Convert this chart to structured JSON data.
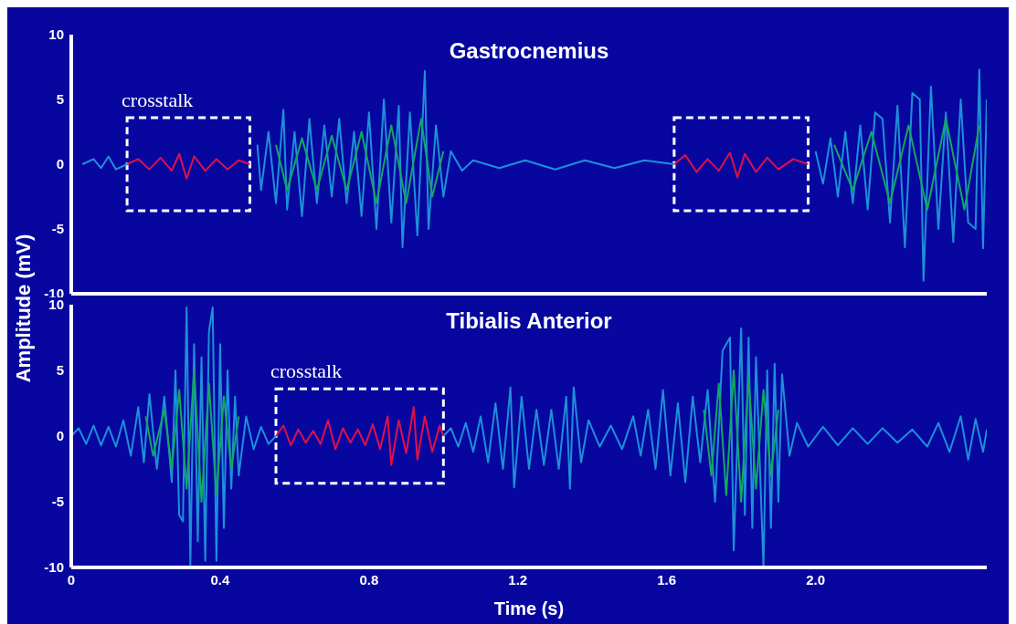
{
  "chart_data": [
    {
      "type": "line",
      "title": "Gastrocnemius",
      "ylabel": "Amplitude (mV)",
      "xlim": [
        0,
        2.46
      ],
      "ylim": [
        -10,
        10
      ],
      "yticks": [
        -10,
        -5,
        0,
        5,
        10
      ],
      "tick_labels": "y",
      "marker": "none",
      "annotations": [
        "crosstalk"
      ],
      "series": [
        {
          "color": "#1e8fd8",
          "x": [
            0.03,
            0.06,
            0.08,
            0.1,
            0.12,
            0.15,
            0.48,
            0.5,
            0.51,
            0.53,
            0.55,
            0.57,
            0.58,
            0.6,
            0.62,
            0.64,
            0.66,
            0.68,
            0.7,
            0.72,
            0.74,
            0.76,
            0.78,
            0.8,
            0.82,
            0.84,
            0.86,
            0.88,
            0.89,
            0.91,
            0.93,
            0.95,
            0.96,
            0.98,
            1.0,
            1.02,
            1.05,
            1.08,
            1.15,
            1.22,
            1.3,
            1.38,
            1.46,
            1.54,
            1.62,
            1.98,
            2.0,
            2.02,
            2.04,
            2.06,
            2.08,
            2.1,
            2.12,
            2.14,
            2.16,
            2.18,
            2.2,
            2.22,
            2.24,
            2.26,
            2.28,
            2.29,
            2.31,
            2.33,
            2.35,
            2.37,
            2.39,
            2.41,
            2.43,
            2.44,
            2.45,
            2.46
          ],
          "values": [
            0,
            0.4,
            -0.3,
            0.6,
            -0.4,
            0,
            null,
            1.5,
            -2,
            2.5,
            -3,
            4.2,
            -3.5,
            2.5,
            -4,
            3.5,
            -3,
            3,
            -2.5,
            3.5,
            -3,
            2.5,
            -4,
            4,
            -5,
            5,
            -4.5,
            4.5,
            -6.4,
            4,
            -5.5,
            7.2,
            -5,
            3,
            -2.5,
            1,
            -0.5,
            0.3,
            -0.3,
            0.3,
            -0.4,
            0.3,
            -0.3,
            0.3,
            0,
            null,
            1,
            -1.5,
            2,
            -2.5,
            2.5,
            -3,
            3,
            -3.5,
            4,
            3.5,
            -4.5,
            4.5,
            -6.4,
            5.5,
            5,
            -9,
            6,
            -5,
            4,
            -6,
            5,
            -4.5,
            -5,
            7.3,
            -6.5,
            5
          ]
        },
        {
          "color": "#12a860",
          "x": [
            0.55,
            0.58,
            0.62,
            0.66,
            0.7,
            0.74,
            0.78,
            0.82,
            0.86,
            0.9,
            0.94,
            0.97,
            1.0,
            1.5,
            2.05,
            2.1,
            2.15,
            2.2,
            2.25,
            2.3,
            2.35,
            2.4,
            2.44
          ],
          "values": [
            1.5,
            -2,
            2,
            -2,
            2.2,
            -2,
            2.5,
            -3,
            3,
            -3,
            3.5,
            -2.5,
            1,
            null,
            1.5,
            -2,
            2.5,
            -3,
            3,
            -3.5,
            3.5,
            -3.5,
            3
          ]
        },
        {
          "color": "#e0104a",
          "x": [
            0.15,
            0.18,
            0.21,
            0.24,
            0.27,
            0.29,
            0.31,
            0.33,
            0.36,
            0.39,
            0.42,
            0.45,
            0.48,
            1.0,
            1.62,
            1.65,
            1.68,
            1.71,
            1.74,
            1.77,
            1.79,
            1.81,
            1.84,
            1.87,
            1.9,
            1.94,
            1.98
          ],
          "values": [
            0,
            0.4,
            -0.4,
            0.5,
            -0.5,
            0.8,
            -1.1,
            0.6,
            -0.5,
            0.4,
            -0.4,
            0.3,
            0,
            null,
            0,
            0.7,
            -0.6,
            0.4,
            -0.5,
            0.9,
            -1,
            0.8,
            -0.6,
            0.5,
            -0.4,
            0.4,
            0
          ]
        }
      ]
    },
    {
      "type": "line",
      "title": "Tibialis Anterior",
      "xlabel": "Time (s)",
      "xlim": [
        0,
        2.46
      ],
      "xticks": [
        0,
        0.4,
        0.8,
        1.2,
        1.6,
        {
          "value": 2,
          "label": "2.0"
        }
      ],
      "ylim": [
        -10,
        10
      ],
      "yticks": [
        -10,
        -5,
        0,
        5,
        10
      ],
      "marker": "none",
      "annotations": [
        "crosstalk"
      ],
      "series": [
        {
          "color": "#1e8fd8",
          "x": [
            0,
            0.02,
            0.04,
            0.06,
            0.08,
            0.1,
            0.12,
            0.14,
            0.16,
            0.18,
            0.195,
            0.21,
            0.23,
            0.25,
            0.27,
            0.28,
            0.29,
            0.3,
            0.31,
            0.32,
            0.33,
            0.34,
            0.35,
            0.36,
            0.37,
            0.38,
            0.39,
            0.4,
            0.41,
            0.42,
            0.43,
            0.44,
            0.45,
            0.47,
            0.49,
            0.51,
            0.53,
            0.55,
            0.8,
            1.0,
            1.02,
            1.04,
            1.06,
            1.08,
            1.1,
            1.12,
            1.14,
            1.16,
            1.18,
            1.19,
            1.21,
            1.23,
            1.25,
            1.27,
            1.29,
            1.31,
            1.33,
            1.34,
            1.35,
            1.37,
            1.39,
            1.42,
            1.45,
            1.48,
            1.51,
            1.53,
            1.55,
            1.57,
            1.59,
            1.61,
            1.63,
            1.65,
            1.67,
            1.69,
            1.71,
            1.73,
            1.75,
            1.77,
            1.78,
            1.8,
            1.81,
            1.82,
            1.83,
            1.84,
            1.86,
            1.87,
            1.88,
            1.89,
            1.9,
            1.91,
            1.93,
            1.95,
            1.98,
            2.02,
            2.06,
            2.1,
            2.14,
            2.18,
            2.22,
            2.26,
            2.3,
            2.33,
            2.36,
            2.39,
            2.41,
            2.43,
            2.45,
            2.46
          ],
          "values": [
            0,
            0.6,
            -0.6,
            0.8,
            -0.7,
            0.7,
            -0.8,
            1.2,
            -1.5,
            2.2,
            -2,
            3.2,
            -2.5,
            3,
            -3.5,
            5,
            -6,
            -6.5,
            9.8,
            -9.8,
            7,
            -8,
            6,
            -9.5,
            8,
            9.8,
            -9.5,
            7,
            -7,
            5,
            -4,
            3,
            -3,
            1.5,
            -1,
            0.7,
            -0.6,
            0,
            null,
            0,
            0.6,
            -0.8,
            1,
            -1.2,
            1.5,
            -2,
            2.5,
            -2.5,
            3.7,
            -3.9,
            3,
            -2.5,
            2,
            -2.2,
            2,
            -2.5,
            3,
            -4,
            3.7,
            -2,
            1.2,
            -0.8,
            0.8,
            -1,
            1.5,
            -1.5,
            2,
            -2.5,
            3.5,
            -3,
            2.5,
            -3.5,
            3,
            -2,
            3.5,
            -5,
            6.5,
            7.5,
            -8.7,
            8.2,
            -6,
            7.5,
            -7,
            6,
            -10,
            5,
            -7,
            5.5,
            -5,
            4.7,
            -1.5,
            1,
            -0.8,
            0.7,
            -0.7,
            0.6,
            -0.6,
            0.6,
            -0.5,
            0.5,
            -0.8,
            1,
            -1.2,
            1.5,
            -1.8,
            1.3,
            -1.2,
            0.5
          ]
        },
        {
          "color": "#12a860",
          "x": [
            0.2,
            0.22,
            0.25,
            0.27,
            0.29,
            0.31,
            0.33,
            0.35,
            0.37,
            0.39,
            0.41,
            0.43,
            0.45,
            1.0,
            1.7,
            1.72,
            1.74,
            1.76,
            1.78,
            1.8,
            1.82,
            1.84,
            1.86,
            1.88,
            1.9
          ],
          "values": [
            1.5,
            -1.5,
            2,
            -2.5,
            3.5,
            -4,
            5,
            -5,
            4,
            -4.5,
            3,
            -2.5,
            1.5,
            null,
            2,
            -3,
            4,
            -4.5,
            5,
            -5,
            4.5,
            -4,
            3.5,
            -3,
            2
          ]
        },
        {
          "color": "#e0104a",
          "x": [
            0.55,
            0.57,
            0.59,
            0.61,
            0.63,
            0.65,
            0.67,
            0.69,
            0.71,
            0.73,
            0.75,
            0.77,
            0.79,
            0.81,
            0.83,
            0.85,
            0.86,
            0.88,
            0.9,
            0.92,
            0.93,
            0.95,
            0.97,
            0.99,
            1.0
          ],
          "values": [
            0,
            0.8,
            -0.7,
            0.5,
            -0.5,
            0.4,
            -0.6,
            1.2,
            -1,
            0.6,
            -0.5,
            0.5,
            -0.7,
            0.9,
            -1,
            1.5,
            -2.2,
            1.2,
            -1.3,
            2.2,
            -1.8,
            1.5,
            -1.2,
            0.8,
            0
          ]
        }
      ]
    }
  ]
}
